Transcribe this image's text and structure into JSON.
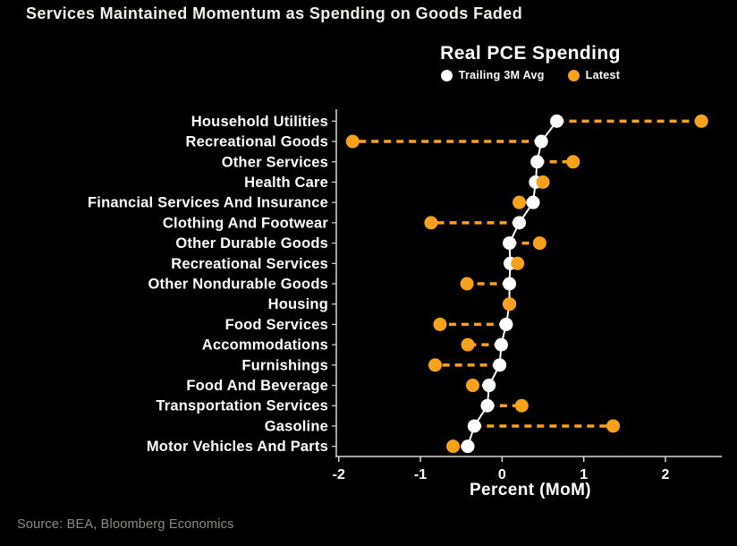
{
  "page": {
    "title": "Services Maintained Momentum as Spending on Goods Faded",
    "source": "Source: BEA, Bloomberg Economics"
  },
  "chart": {
    "title": "Real PCE Spending",
    "xlabel": "Percent (MoM)",
    "legend": [
      {
        "name": "Trailing 3M Avg",
        "color": "#ffffff"
      },
      {
        "name": "Latest",
        "color": "#f7a11c"
      }
    ]
  },
  "chart_data": {
    "type": "scatter",
    "variant": "horizontal-dumbbell-dot-plot",
    "title": "Real PCE Spending",
    "xlabel": "Percent (MoM)",
    "categories": [
      "Household Utilities",
      "Recreational Goods",
      "Other Services",
      "Health Care",
      "Financial Services And Insurance",
      "Clothing And Footwear",
      "Other Durable Goods",
      "Recreational Services",
      "Other Nondurable Goods",
      "Housing",
      "Food Services",
      "Accommodations",
      "Furnishings",
      "Food And Beverage",
      "Transportation Services",
      "Gasoline",
      "Motor Vehicles And Parts"
    ],
    "series": [
      {
        "name": "Trailing 3M Avg",
        "color": "#ffffff",
        "values": [
          0.67,
          0.48,
          0.43,
          0.41,
          0.38,
          0.21,
          0.09,
          0.1,
          0.09,
          0.09,
          0.05,
          -0.01,
          -0.03,
          -0.16,
          -0.18,
          -0.34,
          -0.42
        ]
      },
      {
        "name": "Latest",
        "color": "#f7a11c",
        "values": [
          2.44,
          -1.83,
          0.87,
          0.5,
          0.21,
          -0.87,
          0.46,
          0.19,
          -0.43,
          0.09,
          -0.76,
          -0.42,
          -0.82,
          -0.36,
          0.24,
          1.36,
          -0.6
        ]
      }
    ],
    "x_ticks": [
      "-2",
      "-1",
      "0",
      "1",
      "2"
    ],
    "x_tick_values": [
      -2,
      -1,
      0,
      1,
      2
    ],
    "xlim": [
      -2.03,
      2.69
    ],
    "grid": false,
    "legend_position": "top-center",
    "background": "#000000",
    "axis_color": "#d9d9d2",
    "label_color": "#ffffff",
    "connector": {
      "style": "dashed",
      "color": "#f7a11c"
    }
  }
}
